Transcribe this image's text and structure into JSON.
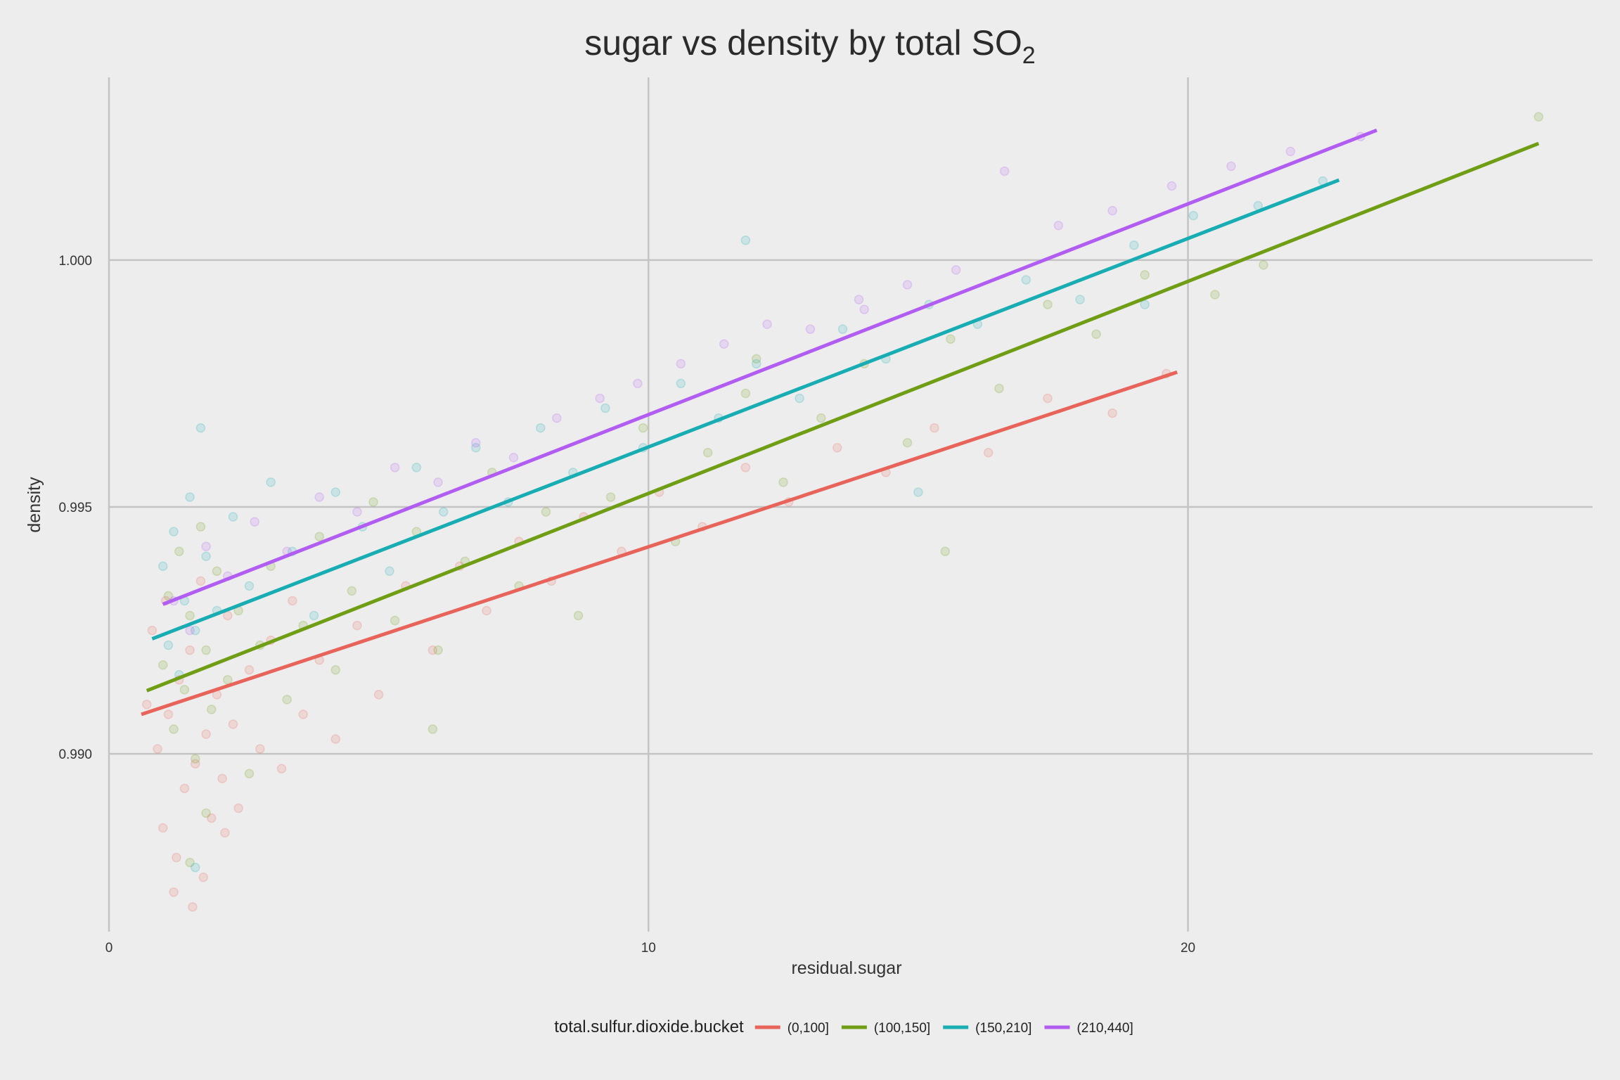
{
  "chart_data": {
    "type": "scatter",
    "title": "sugar vs density by total SO",
    "title_subscript": "2",
    "xlabel": "residual.sugar",
    "ylabel": "density",
    "xlim": [
      0,
      27.5
    ],
    "ylim": [
      0.9864,
      1.0037
    ],
    "x_ticks": [
      0,
      10,
      20
    ],
    "x_tick_labels": [
      "0",
      "10",
      "20"
    ],
    "y_ticks": [
      0.99,
      0.995,
      1.0
    ],
    "y_tick_labels": [
      "0.990",
      "0.995",
      "1.000"
    ],
    "grid": true,
    "legend": {
      "title": "total.sulfur.dioxide.bucket",
      "position": "bottom"
    },
    "series": [
      {
        "name": "(0,100]",
        "color": "#e8645a",
        "trend": {
          "x": [
            0.6,
            19.8
          ],
          "y": [
            0.9908,
            0.99773
          ]
        },
        "points": [
          [
            0.8,
            0.9925
          ],
          [
            0.9,
            0.9901
          ],
          [
            1.0,
            0.9885
          ],
          [
            1.1,
            0.9908
          ],
          [
            1.2,
            0.9872
          ],
          [
            1.3,
            0.9915
          ],
          [
            1.4,
            0.9893
          ],
          [
            1.5,
            0.9921
          ],
          [
            1.6,
            0.9898
          ],
          [
            1.7,
            0.9935
          ],
          [
            1.8,
            0.9904
          ],
          [
            1.9,
            0.9887
          ],
          [
            2.0,
            0.9912
          ],
          [
            2.1,
            0.9895
          ],
          [
            2.2,
            0.9928
          ],
          [
            2.3,
            0.9906
          ],
          [
            2.4,
            0.9889
          ],
          [
            2.6,
            0.9917
          ],
          [
            2.8,
            0.9901
          ],
          [
            3.0,
            0.9923
          ],
          [
            3.2,
            0.9897
          ],
          [
            3.4,
            0.9931
          ],
          [
            3.6,
            0.9908
          ],
          [
            3.9,
            0.9919
          ],
          [
            4.2,
            0.9903
          ],
          [
            4.6,
            0.9926
          ],
          [
            5.0,
            0.9912
          ],
          [
            5.5,
            0.9934
          ],
          [
            6.0,
            0.9921
          ],
          [
            6.5,
            0.9938
          ],
          [
            7.0,
            0.9929
          ],
          [
            7.6,
            0.9943
          ],
          [
            8.2,
            0.9935
          ],
          [
            8.8,
            0.9948
          ],
          [
            9.5,
            0.9941
          ],
          [
            10.2,
            0.9953
          ],
          [
            11.0,
            0.9946
          ],
          [
            11.8,
            0.9958
          ],
          [
            12.6,
            0.9951
          ],
          [
            13.5,
            0.9962
          ],
          [
            14.4,
            0.9957
          ],
          [
            15.3,
            0.9966
          ],
          [
            16.3,
            0.9961
          ],
          [
            17.4,
            0.9972
          ],
          [
            18.6,
            0.9969
          ],
          [
            19.6,
            0.9977
          ],
          [
            1.25,
            0.9879
          ],
          [
            1.55,
            0.9869
          ],
          [
            1.75,
            0.9875
          ],
          [
            2.15,
            0.9884
          ],
          [
            0.7,
            0.991
          ],
          [
            1.05,
            0.9931
          ]
        ]
      },
      {
        "name": "(100,150]",
        "color": "#6f9e14",
        "trend": {
          "x": [
            0.7,
            26.5
          ],
          "y": [
            0.99128,
            1.00236
          ]
        },
        "points": [
          [
            1.0,
            0.9918
          ],
          [
            1.1,
            0.9932
          ],
          [
            1.2,
            0.9905
          ],
          [
            1.3,
            0.9941
          ],
          [
            1.4,
            0.9913
          ],
          [
            1.5,
            0.9928
          ],
          [
            1.6,
            0.9899
          ],
          [
            1.7,
            0.9946
          ],
          [
            1.8,
            0.9921
          ],
          [
            1.9,
            0.9909
          ],
          [
            2.0,
            0.9937
          ],
          [
            2.2,
            0.9915
          ],
          [
            2.4,
            0.9929
          ],
          [
            2.6,
            0.9896
          ],
          [
            2.8,
            0.9922
          ],
          [
            3.0,
            0.9938
          ],
          [
            3.3,
            0.9911
          ],
          [
            3.6,
            0.9926
          ],
          [
            3.9,
            0.9944
          ],
          [
            4.2,
            0.9917
          ],
          [
            4.5,
            0.9933
          ],
          [
            4.9,
            0.9951
          ],
          [
            5.3,
            0.9927
          ],
          [
            5.7,
            0.9945
          ],
          [
            6.1,
            0.9921
          ],
          [
            6.6,
            0.9939
          ],
          [
            7.1,
            0.9957
          ],
          [
            7.6,
            0.9934
          ],
          [
            8.1,
            0.9949
          ],
          [
            8.7,
            0.9928
          ],
          [
            9.3,
            0.9952
          ],
          [
            9.9,
            0.9966
          ],
          [
            10.5,
            0.9943
          ],
          [
            11.1,
            0.9961
          ],
          [
            11.8,
            0.9973
          ],
          [
            12.5,
            0.9955
          ],
          [
            13.2,
            0.9968
          ],
          [
            14.0,
            0.9979
          ],
          [
            14.8,
            0.9963
          ],
          [
            15.6,
            0.9984
          ],
          [
            16.5,
            0.9974
          ],
          [
            17.4,
            0.9991
          ],
          [
            18.3,
            0.9985
          ],
          [
            19.2,
            0.9997
          ],
          [
            20.5,
            0.9993
          ],
          [
            21.4,
            0.9999
          ],
          [
            26.5,
            1.0029
          ],
          [
            1.5,
            0.9878
          ],
          [
            1.8,
            0.9888
          ],
          [
            15.5,
            0.9941
          ],
          [
            12.0,
            0.998
          ],
          [
            6.0,
            0.9905
          ]
        ]
      },
      {
        "name": "(150,210]",
        "color": "#17adb2",
        "trend": {
          "x": [
            0.8,
            22.8
          ],
          "y": [
            0.99233,
            1.00162
          ]
        },
        "points": [
          [
            1.0,
            0.9938
          ],
          [
            1.1,
            0.9922
          ],
          [
            1.2,
            0.9945
          ],
          [
            1.3,
            0.9916
          ],
          [
            1.4,
            0.9931
          ],
          [
            1.5,
            0.9952
          ],
          [
            1.6,
            0.9925
          ],
          [
            1.7,
            0.9966
          ],
          [
            1.8,
            0.994
          ],
          [
            2.0,
            0.9929
          ],
          [
            2.3,
            0.9948
          ],
          [
            2.6,
            0.9934
          ],
          [
            3.0,
            0.9955
          ],
          [
            3.4,
            0.9941
          ],
          [
            3.8,
            0.9928
          ],
          [
            4.2,
            0.9953
          ],
          [
            4.7,
            0.9946
          ],
          [
            5.2,
            0.9937
          ],
          [
            5.7,
            0.9958
          ],
          [
            6.2,
            0.9949
          ],
          [
            6.8,
            0.9962
          ],
          [
            7.4,
            0.9951
          ],
          [
            8.0,
            0.9966
          ],
          [
            8.6,
            0.9957
          ],
          [
            9.2,
            0.997
          ],
          [
            9.9,
            0.9962
          ],
          [
            10.6,
            0.9975
          ],
          [
            11.3,
            0.9968
          ],
          [
            12.0,
            0.9979
          ],
          [
            12.8,
            0.9972
          ],
          [
            13.6,
            0.9986
          ],
          [
            14.4,
            0.998
          ],
          [
            15.2,
            0.9991
          ],
          [
            16.1,
            0.9987
          ],
          [
            17.0,
            0.9996
          ],
          [
            18.0,
            0.9992
          ],
          [
            19.0,
            1.0003
          ],
          [
            20.1,
            1.0009
          ],
          [
            21.3,
            1.0011
          ],
          [
            22.5,
            1.0016
          ],
          [
            11.8,
            1.0004
          ],
          [
            15.0,
            0.9953
          ],
          [
            1.6,
            0.9877
          ],
          [
            19.2,
            0.9991
          ]
        ]
      },
      {
        "name": "(210,440]",
        "color": "#b25df2",
        "trend": {
          "x": [
            1.0,
            23.5
          ],
          "y": [
            0.99303,
            1.00263
          ]
        },
        "points": [
          [
            1.2,
            0.9931
          ],
          [
            1.5,
            0.9925
          ],
          [
            1.8,
            0.9942
          ],
          [
            2.2,
            0.9936
          ],
          [
            2.7,
            0.9947
          ],
          [
            3.3,
            0.9941
          ],
          [
            3.9,
            0.9952
          ],
          [
            4.6,
            0.9949
          ],
          [
            5.3,
            0.9958
          ],
          [
            6.1,
            0.9955
          ],
          [
            6.8,
            0.9963
          ],
          [
            7.5,
            0.996
          ],
          [
            8.3,
            0.9968
          ],
          [
            9.1,
            0.9972
          ],
          [
            9.8,
            0.9975
          ],
          [
            10.6,
            0.9979
          ],
          [
            11.4,
            0.9983
          ],
          [
            12.2,
            0.9987
          ],
          [
            13.0,
            0.9986
          ],
          [
            13.9,
            0.9992
          ],
          [
            14.8,
            0.9995
          ],
          [
            15.7,
            0.9998
          ],
          [
            16.6,
            1.0018
          ],
          [
            17.6,
            1.0007
          ],
          [
            18.6,
            1.001
          ],
          [
            19.7,
            1.0015
          ],
          [
            20.8,
            1.0019
          ],
          [
            21.9,
            1.0022
          ],
          [
            23.2,
            1.0025
          ],
          [
            14.0,
            0.999
          ]
        ]
      }
    ]
  }
}
